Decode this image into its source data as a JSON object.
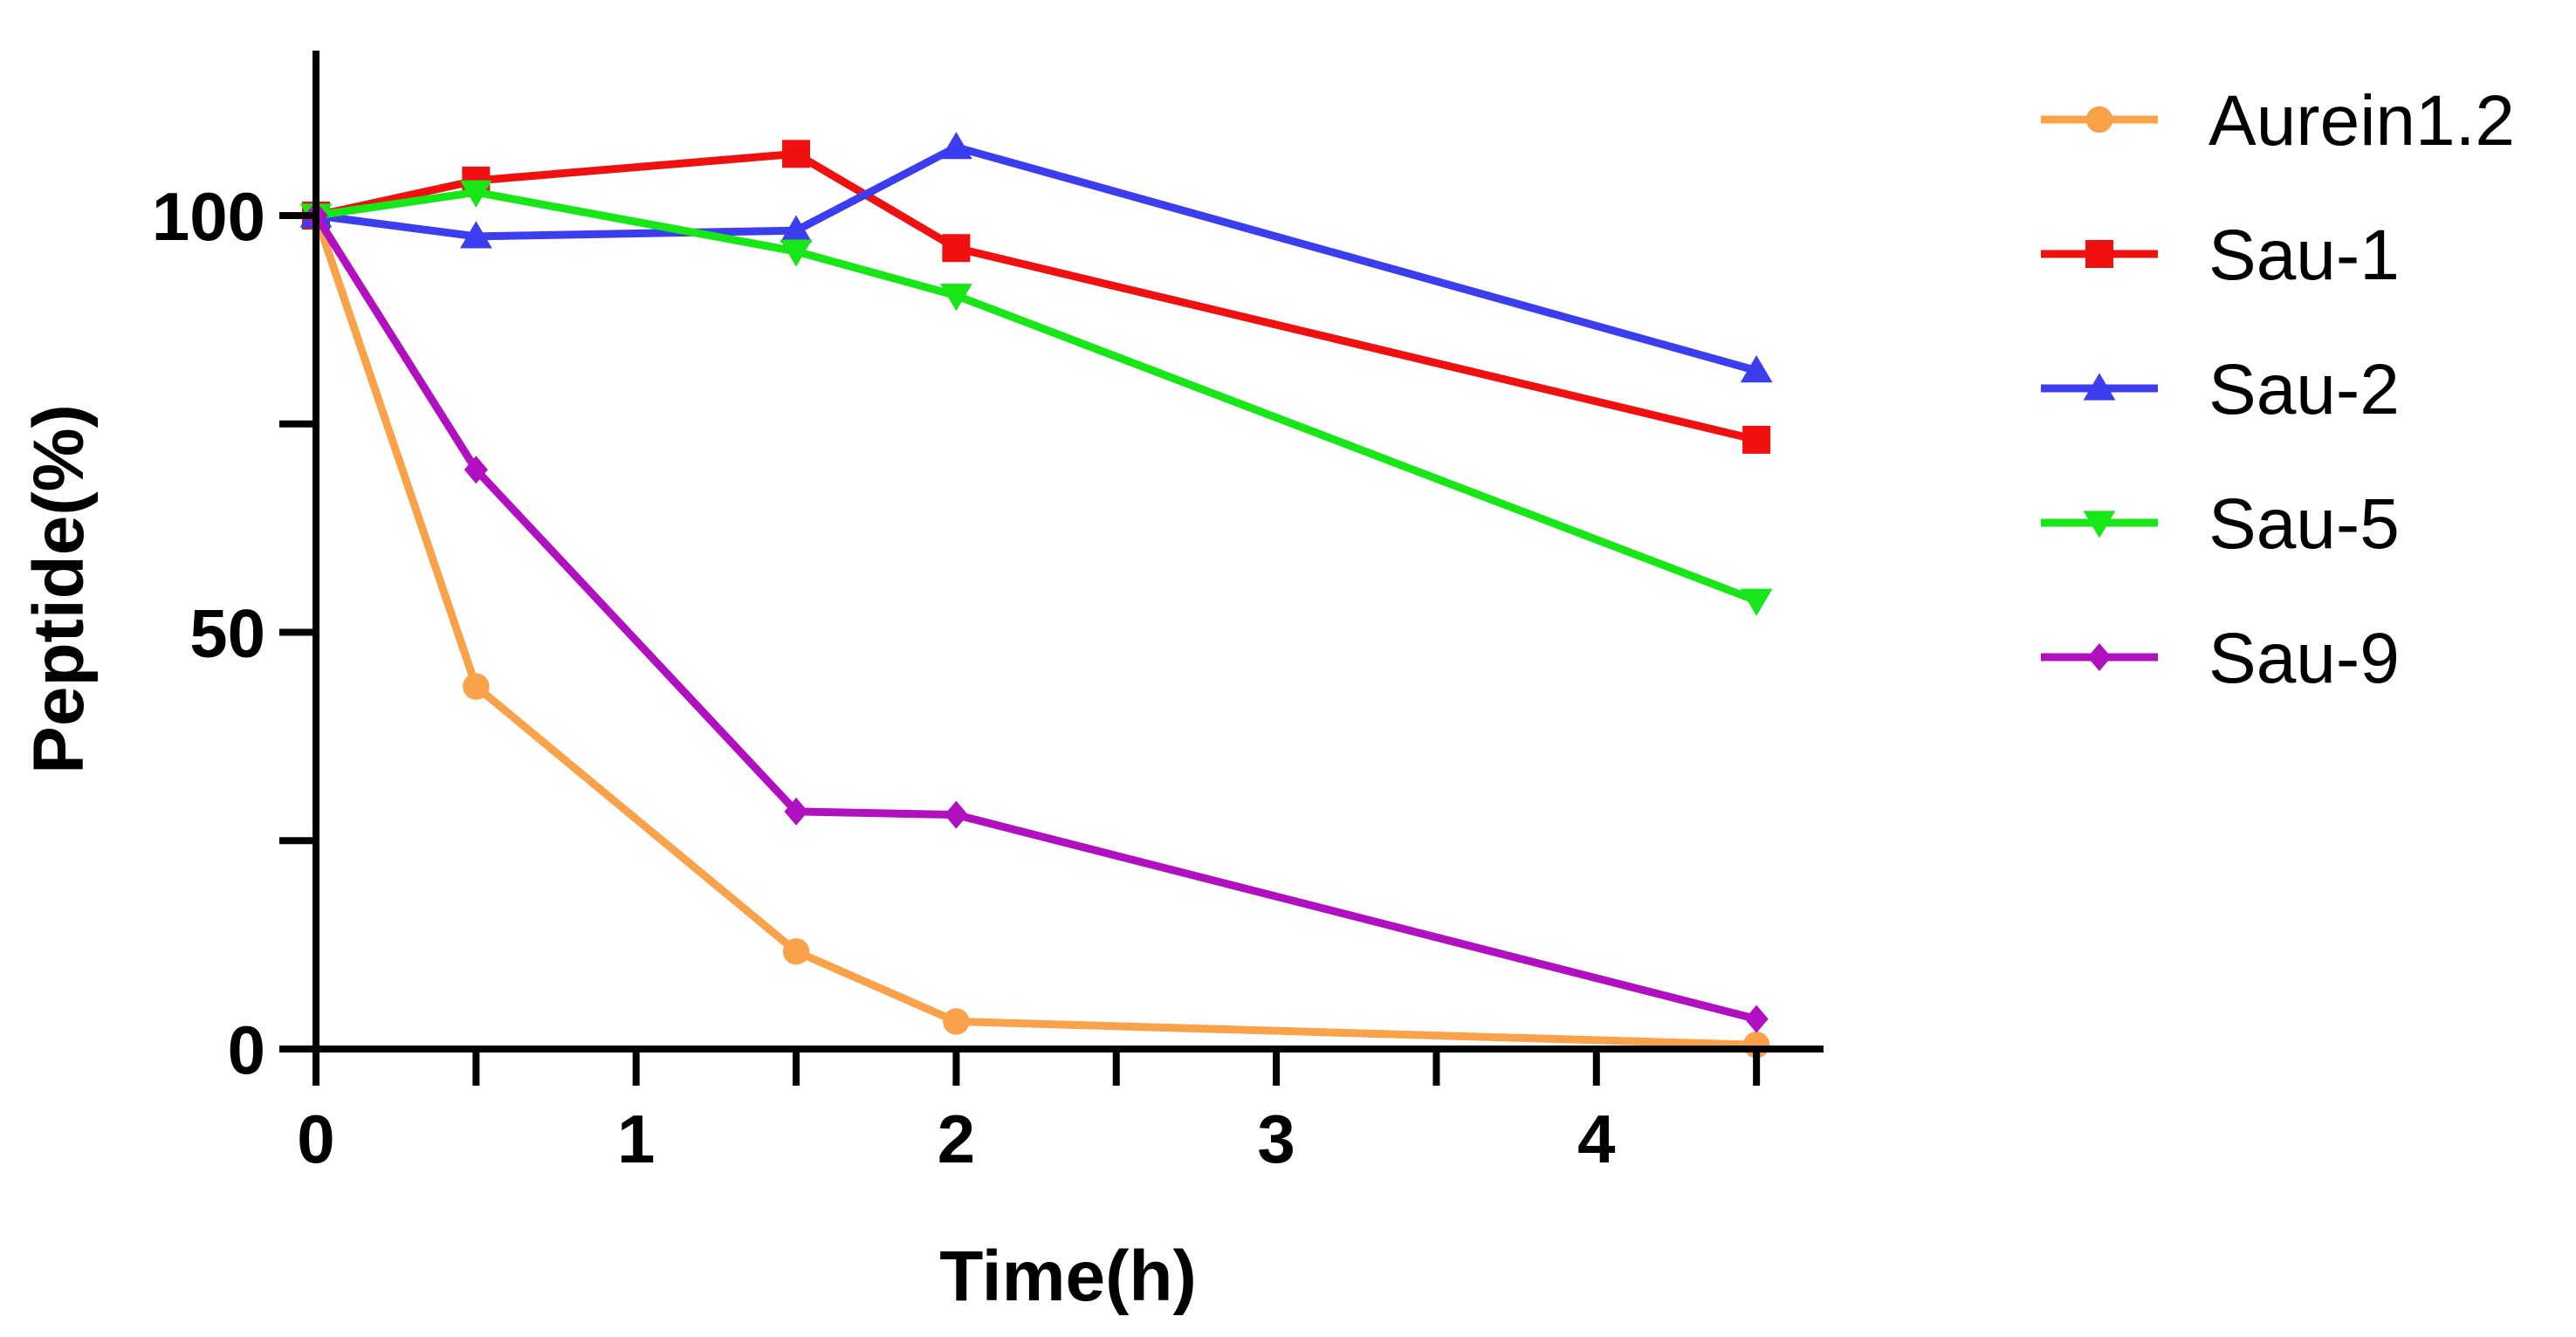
{
  "chart_data": {
    "type": "line",
    "title": "",
    "xlabel": "Time(h)",
    "ylabel": "Peptide(%)",
    "xlim": [
      0,
      4.7
    ],
    "ylim": [
      0,
      120
    ],
    "x_ticks": [
      0,
      0.5,
      1,
      1.5,
      2,
      2.5,
      3,
      3.5,
      4,
      4.5
    ],
    "x_tick_labels": [
      {
        "value": 0,
        "label": "0"
      },
      {
        "value": 1,
        "label": "1"
      },
      {
        "value": 2,
        "label": "2"
      },
      {
        "value": 3,
        "label": "3"
      },
      {
        "value": 4,
        "label": "4"
      }
    ],
    "y_ticks": [
      0,
      25,
      50,
      75,
      100
    ],
    "y_tick_labels": [
      {
        "value": 0,
        "label": "0"
      },
      {
        "value": 50,
        "label": "50"
      },
      {
        "value": 100,
        "label": "100"
      }
    ],
    "grid": false,
    "legend_position": "right",
    "x": [
      0,
      0.5,
      1.5,
      2,
      4.5
    ],
    "series": [
      {
        "name": "Aurein1.2",
        "color": "#f9a24a",
        "marker": "circle",
        "values": [
          100,
          43.5,
          11.7,
          3.3,
          0.5
        ]
      },
      {
        "name": "Sau-1",
        "color": "#f01010",
        "marker": "square",
        "values": [
          100,
          104.2,
          107.4,
          96.1,
          73.1
        ]
      },
      {
        "name": "Sau-2",
        "color": "#3d3df0",
        "marker": "triangle-up",
        "values": [
          100,
          97.5,
          98.2,
          108.2,
          81.4
        ]
      },
      {
        "name": "Sau-5",
        "color": "#17e617",
        "marker": "triangle-down",
        "values": [
          100,
          102.8,
          95.7,
          90.4,
          53.8
        ]
      },
      {
        "name": "Sau-9",
        "color": "#b010c0",
        "marker": "diamond",
        "values": [
          100,
          69.5,
          28.5,
          28.1,
          3.6
        ]
      }
    ]
  }
}
